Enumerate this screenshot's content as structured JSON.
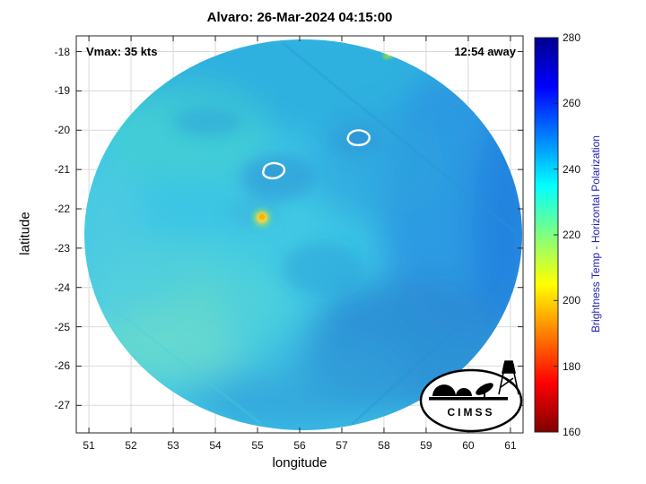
{
  "figure": {
    "title": "Alvaro: 26-Mar-2024 04:15:00",
    "annotation_left": "Vmax: 35 kts",
    "annotation_right": "12:54 away",
    "logo_text": "CIMSS"
  },
  "colors": {
    "grid": "#d9d9d9",
    "axis": "#262626",
    "colorbar_label": "#2323b0",
    "swath_base": "#3cc5e6",
    "contour": "#ffffff"
  },
  "chart_data": {
    "type": "heatmap",
    "title": "Alvaro: 26-Mar-2024 04:15:00",
    "xlabel": "longitude",
    "ylabel": "latitude",
    "xlim": [
      50.7,
      61.3
    ],
    "ylim": [
      -27.7,
      -17.6
    ],
    "x_ticks": [
      51,
      52,
      53,
      54,
      55,
      56,
      57,
      58,
      59,
      60,
      61
    ],
    "y_ticks": [
      -18,
      -19,
      -20,
      -21,
      -22,
      -23,
      -24,
      -25,
      -26,
      -27
    ],
    "grid": true,
    "colorbar": {
      "label": "Brightness Temp - Horizontal Polarization",
      "range": [
        160,
        280
      ],
      "ticks": [
        160,
        180,
        200,
        220,
        240,
        260,
        280
      ],
      "colormap": "reversed-jet",
      "position": "right"
    },
    "annotations": [
      {
        "text": "Vmax: 35 kts",
        "position": "top-left"
      },
      {
        "text": "12:54 away",
        "position": "top-right"
      }
    ],
    "swath": {
      "shape": "circular",
      "center_lon": 56.1,
      "center_lat": -22.6,
      "dominant_value_range_k": [
        235,
        262
      ]
    },
    "features": [
      {
        "name": "warm-spot",
        "lon": 55.1,
        "lat": -22.4,
        "approx_value_k": 205
      },
      {
        "name": "eye-contour-east",
        "lon": 57.5,
        "lat": -20.4
      },
      {
        "name": "eye-contour-west",
        "lon": 55.6,
        "lat": -21.1
      },
      {
        "name": "edge-bright-spot",
        "lon": 58.2,
        "lat": -18.3
      }
    ]
  }
}
